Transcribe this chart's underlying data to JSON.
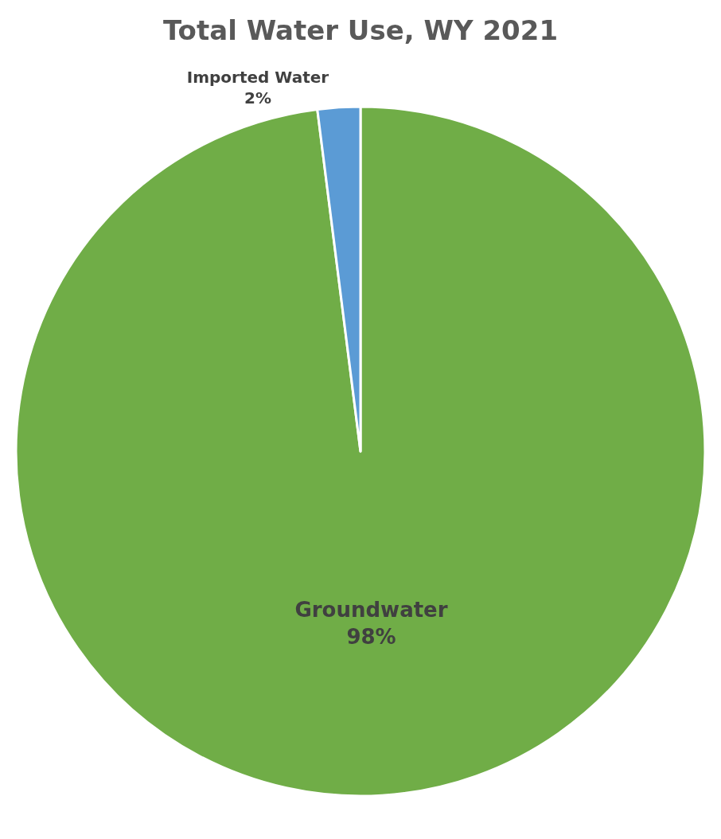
{
  "chart_data": {
    "type": "pie",
    "title": "Total Water Use, WY 2021",
    "categories": [
      "Groundwater",
      "Imported Water"
    ],
    "values": [
      98,
      2
    ],
    "colors": [
      "#70ad47",
      "#5b9bd5"
    ],
    "value_labels": [
      "98%",
      "2%"
    ],
    "legend": false
  }
}
